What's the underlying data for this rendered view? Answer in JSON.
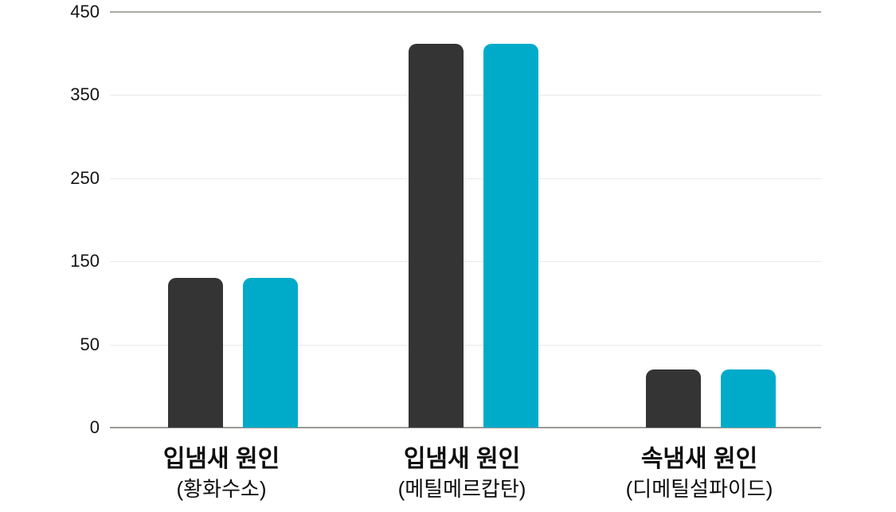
{
  "chart_data": {
    "type": "bar",
    "title": "",
    "xlabel": "",
    "ylabel": "",
    "legend": "none",
    "grid": true,
    "y_ticks": [
      0,
      50,
      150,
      250,
      350,
      450
    ],
    "axis_note": "y ticks are equally spaced (non-linear: 0-50 step then 100-unit steps); top (450) and baseline (0) lines are dark, inner gridlines light",
    "categories": [
      {
        "title": "입냄새 원인",
        "subtitle": "(황화수소)"
      },
      {
        "title": "입냄새 원인",
        "subtitle": "(메틸메르캅탄)"
      },
      {
        "title": "속냄새 원인",
        "subtitle": "(디메틸설파이드)"
      }
    ],
    "series": [
      {
        "name": "dark",
        "color": "#343434",
        "values": [
          130,
          412,
          35
        ]
      },
      {
        "name": "cyan",
        "color": "#00abc9",
        "values": [
          130,
          412,
          35
        ]
      }
    ]
  },
  "colors": {
    "background": "#ffffff",
    "grid_light": "#e9e9e9",
    "grid_top": "#aba9a4",
    "grid_baseline": "#9b9b98",
    "text": "#0d0d0d"
  }
}
